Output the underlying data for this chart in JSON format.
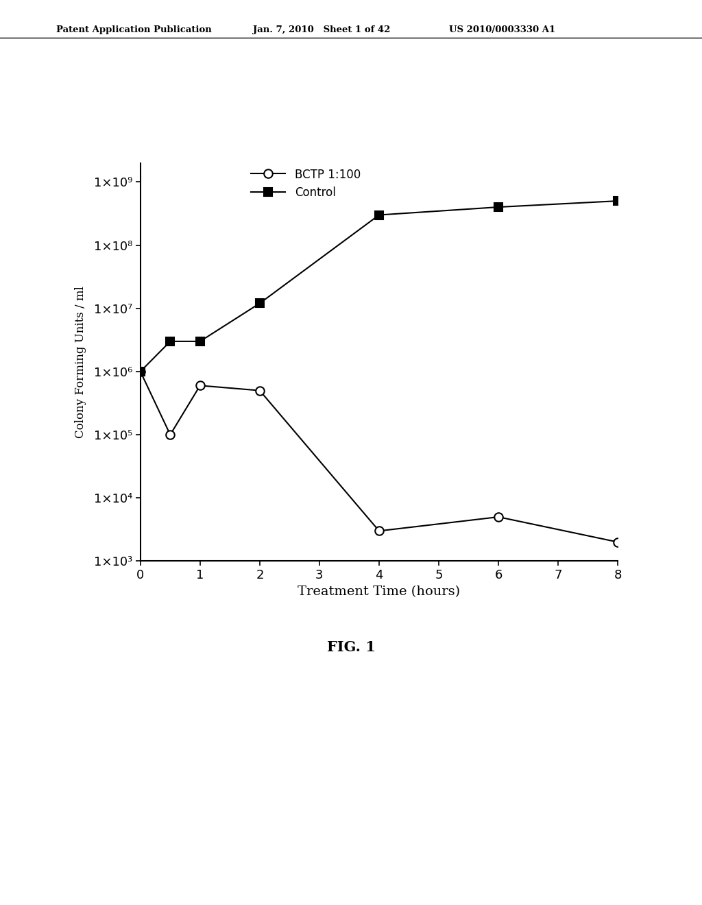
{
  "bctp_x": [
    0,
    0.5,
    1,
    2,
    4,
    6,
    8
  ],
  "bctp_y": [
    1000000.0,
    100000.0,
    600000.0,
    500000.0,
    3000.0,
    5000.0,
    2000.0
  ],
  "control_x": [
    0,
    0.5,
    1,
    2,
    4,
    6,
    8
  ],
  "control_y": [
    1000000.0,
    3000000.0,
    3000000.0,
    12000000.0,
    300000000.0,
    400000000.0,
    500000000.0
  ],
  "xlabel": "Treatment Time (hours)",
  "ylabel": "Colony Forming Units / ml",
  "legend_bctp": "BCTP 1:100",
  "legend_control": "Control",
  "fig_label": "FIG. 1",
  "header_left": "Patent Application Publication",
  "header_mid": "Jan. 7, 2010   Sheet 1 of 42",
  "header_right": "US 2010/0003330 A1",
  "xlim": [
    0,
    8
  ],
  "ylim_log": [
    1000.0,
    2000000000.0
  ],
  "background_color": "#ffffff",
  "line_color": "#000000",
  "ytick_labels": [
    "1×10³",
    "1×10⁴",
    "1×10⁵",
    "1×10⁶",
    "1×10⁷",
    "1×10⁸",
    "1×10⁹"
  ],
  "ytick_values": [
    1000,
    10000,
    100000,
    1000000,
    10000000,
    100000000,
    1000000000
  ]
}
